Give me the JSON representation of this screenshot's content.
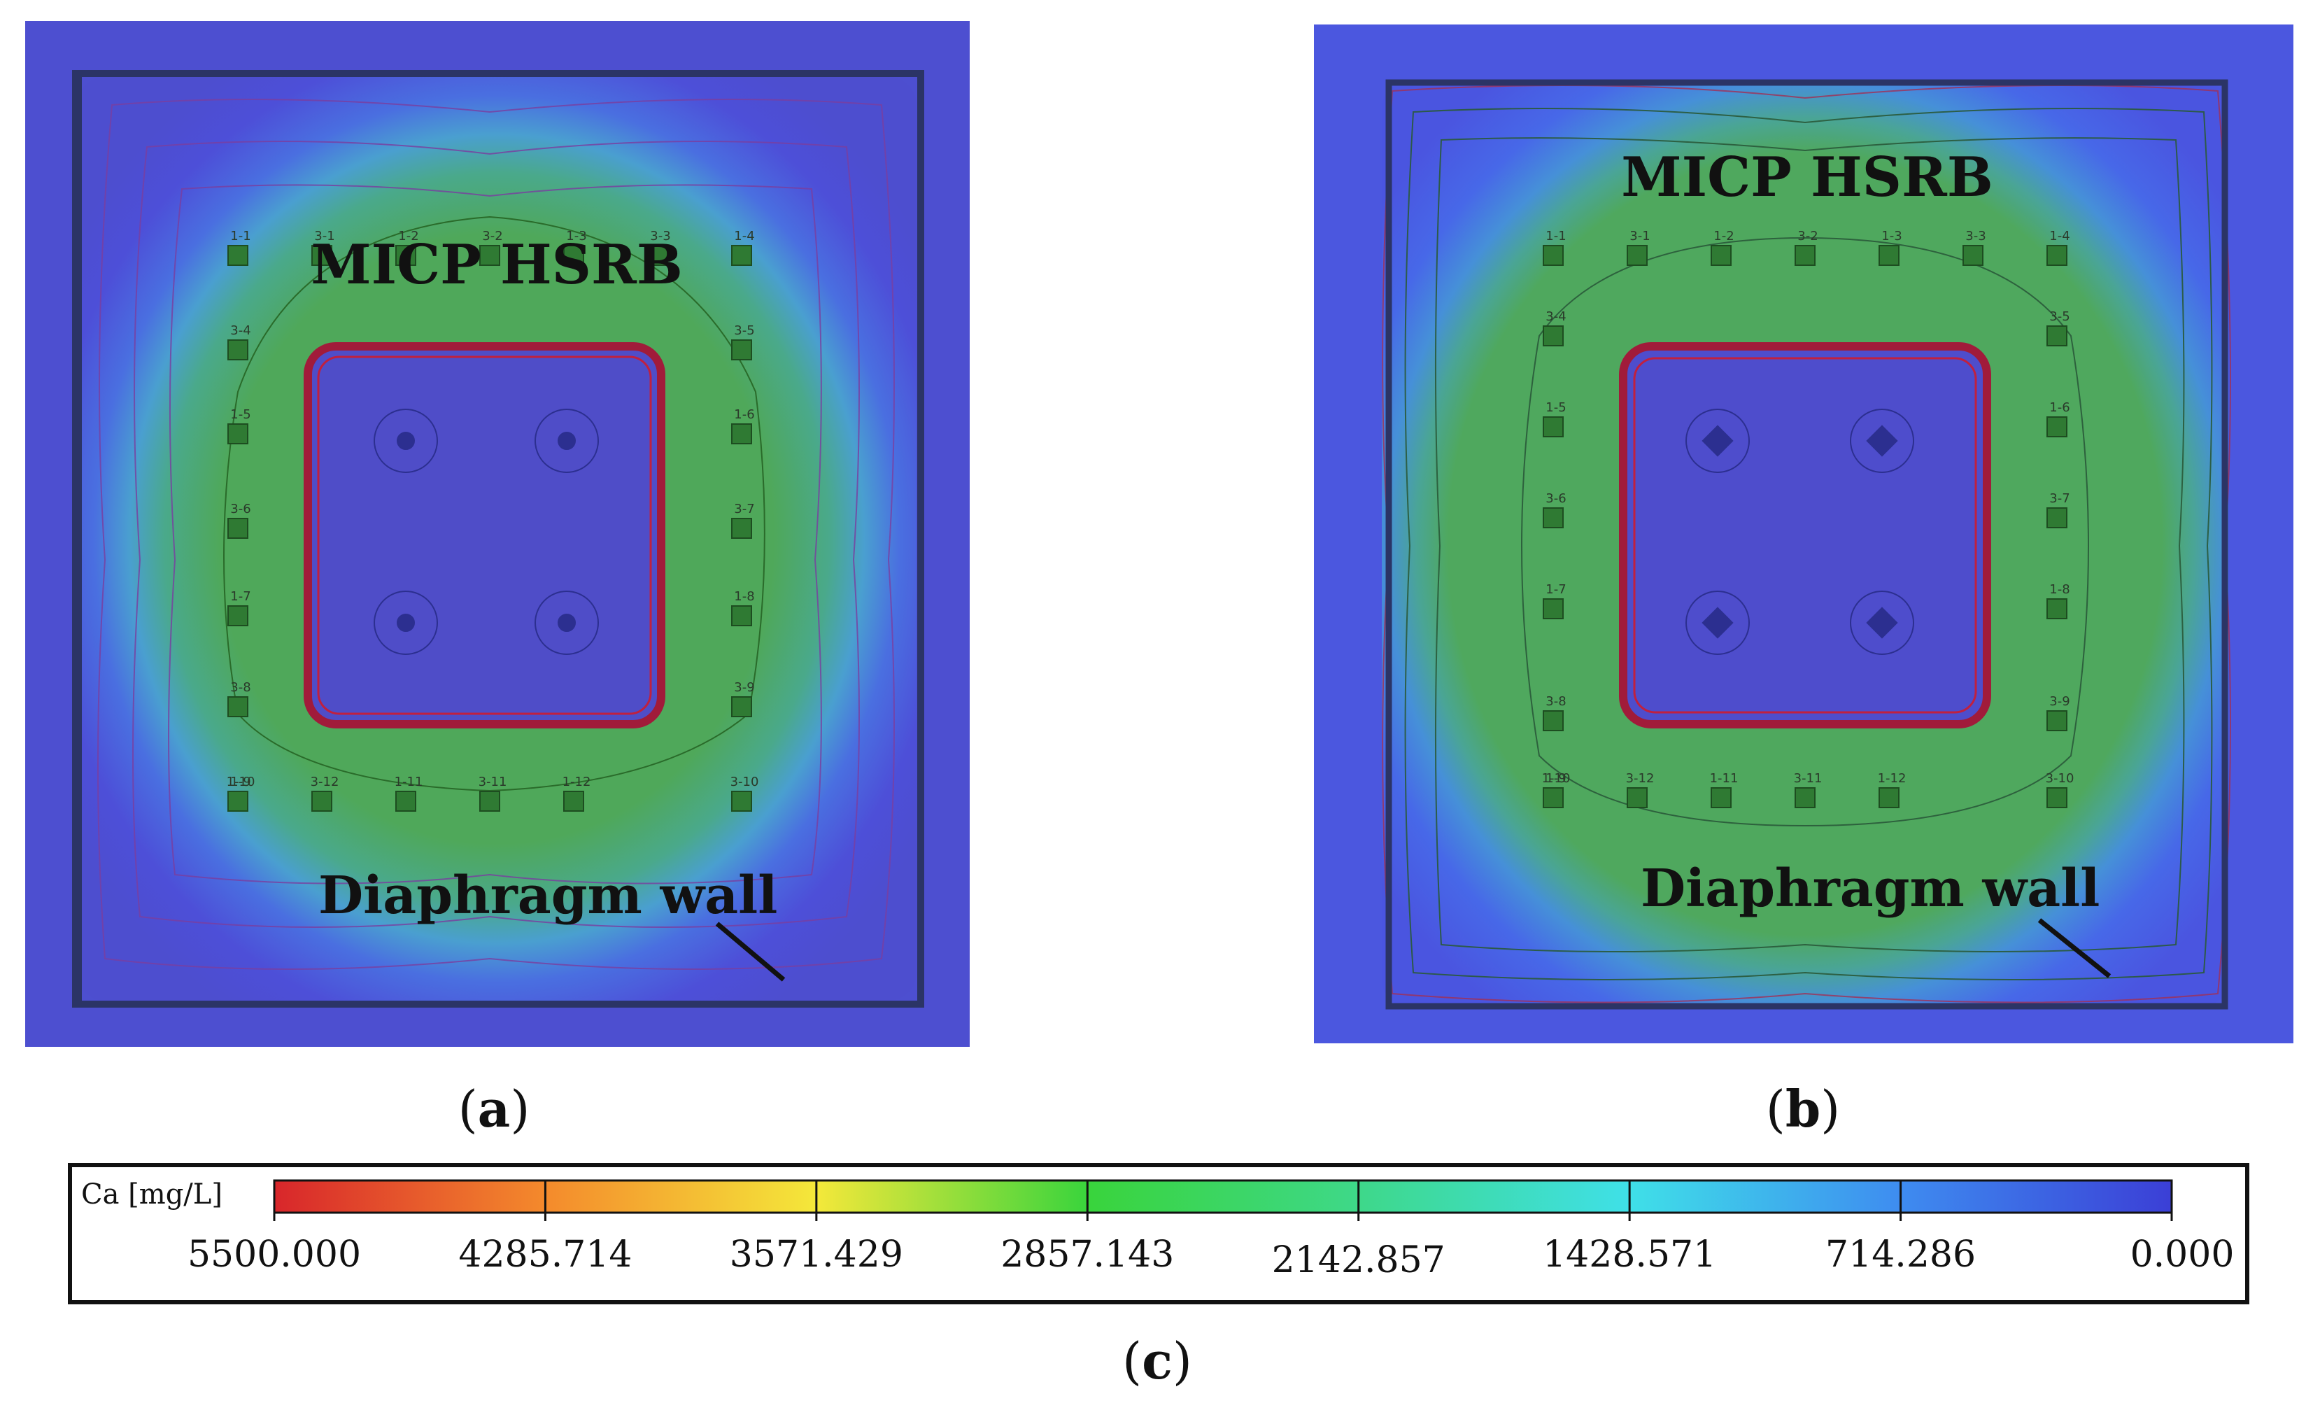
{
  "panel_a": {
    "label": "a",
    "title": "MICP HSRB",
    "wall_label": "Diaphragm wall",
    "wells": [
      "1-1",
      "3-1",
      "1-2",
      "3-2",
      "1-3",
      "3-3",
      "1-4",
      "3-4",
      "3-5",
      "1-5",
      "1-6",
      "3-6",
      "3-7",
      "1-7",
      "1-8",
      "3-8",
      "3-9",
      "1-9",
      "3-10",
      "1-10",
      "3-12",
      "1-11",
      "3-11",
      "1-12"
    ]
  },
  "panel_b": {
    "label": "b",
    "title": "MICP HSRB",
    "wall_label": "Diaphragm wall",
    "wells": [
      "1-1",
      "3-1",
      "1-2",
      "3-2",
      "1-3",
      "3-3",
      "1-4",
      "3-4",
      "3-5",
      "1-5",
      "1-6",
      "3-6",
      "3-7",
      "1-7",
      "1-8",
      "3-8",
      "3-9",
      "1-9",
      "3-10",
      "1-10",
      "3-12",
      "1-11",
      "3-11",
      "1-12"
    ]
  },
  "legend": {
    "label": "c",
    "title": "Ca [mg/L]",
    "ticks": [
      "5500.000",
      "4285.714",
      "3571.429",
      "2857.143",
      "2142.857",
      "1428.571",
      "714.286",
      "0.000"
    ],
    "colors": [
      "#d8262b",
      "#f48a2c",
      "#f4e83a",
      "#39d43c",
      "#3ed889",
      "#3fe0e8",
      "#3e8cf0",
      "#3b3fd6"
    ]
  }
}
